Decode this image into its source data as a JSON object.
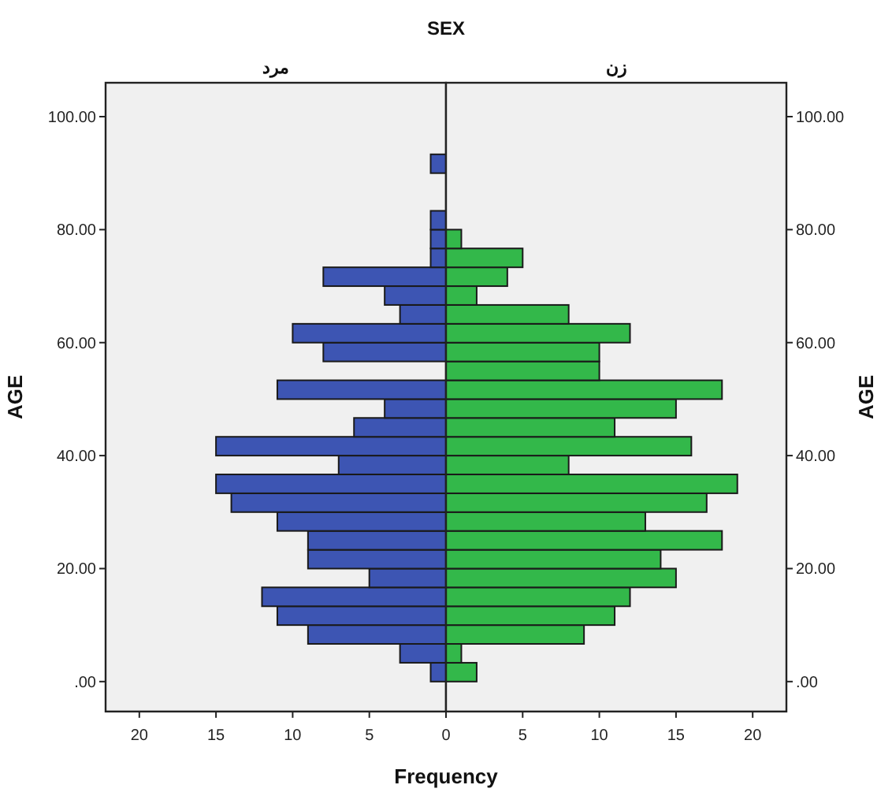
{
  "chart_data": [
    {
      "type": "histogram",
      "orientation": "horizontal",
      "title": "SEX",
      "subtitle": "مرد",
      "xlabel": "Frequency",
      "ylabel": "AGE",
      "bins": [
        0,
        3.33,
        6.67,
        10,
        13.33,
        16.67,
        20,
        23.33,
        26.67,
        30,
        33.33,
        36.67,
        40,
        43.33,
        46.67,
        50,
        53.33,
        56.67,
        60,
        63.33,
        66.67,
        70,
        73.33,
        76.67,
        80,
        83.33,
        86.67,
        90,
        93.33
      ],
      "values": [
        1,
        3,
        9,
        11,
        12,
        5,
        9,
        9,
        11,
        14,
        15,
        7,
        15,
        6,
        4,
        11,
        0,
        8,
        10,
        3,
        4,
        8,
        1,
        1,
        1,
        0,
        0,
        1
      ],
      "color": "#3d55b3",
      "xlim": [
        22.2,
        0
      ],
      "xticks": [
        20,
        15,
        10,
        5,
        0
      ],
      "ylim": [
        -5.3,
        106
      ],
      "yticks": [
        {
          "value": 0,
          "label": ".00"
        },
        {
          "value": 20,
          "label": "20.00"
        },
        {
          "value": 40,
          "label": "40.00"
        },
        {
          "value": 60,
          "label": "60.00"
        },
        {
          "value": 80,
          "label": "80.00"
        },
        {
          "value": 100,
          "label": "100.00"
        }
      ]
    },
    {
      "type": "histogram",
      "orientation": "horizontal",
      "subtitle": "زن",
      "ylabel": "AGE",
      "bins": [
        0,
        3.33,
        6.67,
        10,
        13.33,
        16.67,
        20,
        23.33,
        26.67,
        30,
        33.33,
        36.67,
        40,
        43.33,
        46.67,
        50,
        53.33,
        56.67,
        60,
        63.33,
        66.67,
        70,
        73.33,
        76.67,
        80,
        83.33,
        86.67,
        90,
        93.33
      ],
      "values": [
        2,
        1,
        9,
        11,
        12,
        15,
        14,
        18,
        13,
        17,
        19,
        8,
        16,
        11,
        15,
        18,
        10,
        10,
        12,
        8,
        2,
        4,
        5,
        1,
        0,
        0,
        0,
        0
      ],
      "color": "#33b84a",
      "xlim": [
        0,
        22.2
      ],
      "xticks": [
        {
          "value": 0,
          "label": null
        },
        5,
        10,
        15,
        20
      ],
      "ylim": [
        -5.3,
        106
      ],
      "yticks": [
        {
          "value": 0,
          "label": ".00"
        },
        {
          "value": 20,
          "label": "20.00"
        },
        {
          "value": 40,
          "label": "40.00"
        },
        {
          "value": 60,
          "label": "60.00"
        },
        {
          "value": 80,
          "label": "80.00"
        },
        {
          "value": 100,
          "label": "100.00"
        }
      ]
    }
  ]
}
